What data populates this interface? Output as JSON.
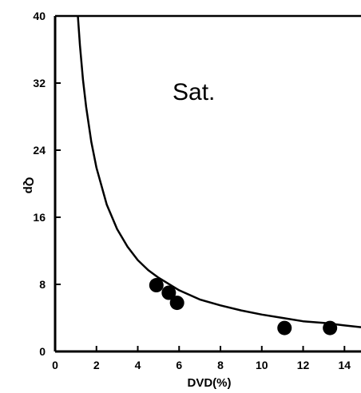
{
  "chart_data": {
    "type": "scatter",
    "title": "",
    "annotation": "Sat.",
    "xlabel": "DVD(%)",
    "ylabel": "Qp",
    "xlim": [
      0,
      14.8
    ],
    "ylim": [
      0,
      40
    ],
    "x_ticks": [
      0,
      2,
      4,
      6,
      8,
      10,
      12,
      14
    ],
    "y_ticks": [
      0,
      8,
      16,
      24,
      32,
      40
    ],
    "x_tick_labels": [
      "0",
      "2",
      "4",
      "6",
      "8",
      "10",
      "12",
      "14"
    ],
    "y_tick_labels": [
      "0",
      "8",
      "16",
      "24",
      "32",
      "40"
    ],
    "grid": false,
    "series": [
      {
        "kind": "points",
        "x": [
          4.9,
          5.5,
          5.9,
          11.1,
          13.3
        ],
        "y": [
          7.9,
          7.0,
          5.8,
          2.8,
          2.8
        ]
      },
      {
        "kind": "fitted-curve",
        "x": [
          1.1,
          1.2,
          1.35,
          1.5,
          1.75,
          2.0,
          2.5,
          3.0,
          3.5,
          4.0,
          4.5,
          5.0,
          6.0,
          7.0,
          8.0,
          9.0,
          10.0,
          11.0,
          12.0,
          13.0,
          14.0,
          14.8
        ],
        "y": [
          40,
          36.5,
          32.4,
          29.2,
          25.0,
          21.9,
          17.5,
          14.6,
          12.5,
          10.9,
          9.7,
          8.8,
          7.3,
          6.2,
          5.5,
          4.9,
          4.4,
          4.0,
          3.6,
          3.4,
          3.1,
          2.9
        ]
      }
    ],
    "colors": {
      "line": "#000000",
      "points": "#000000"
    }
  }
}
